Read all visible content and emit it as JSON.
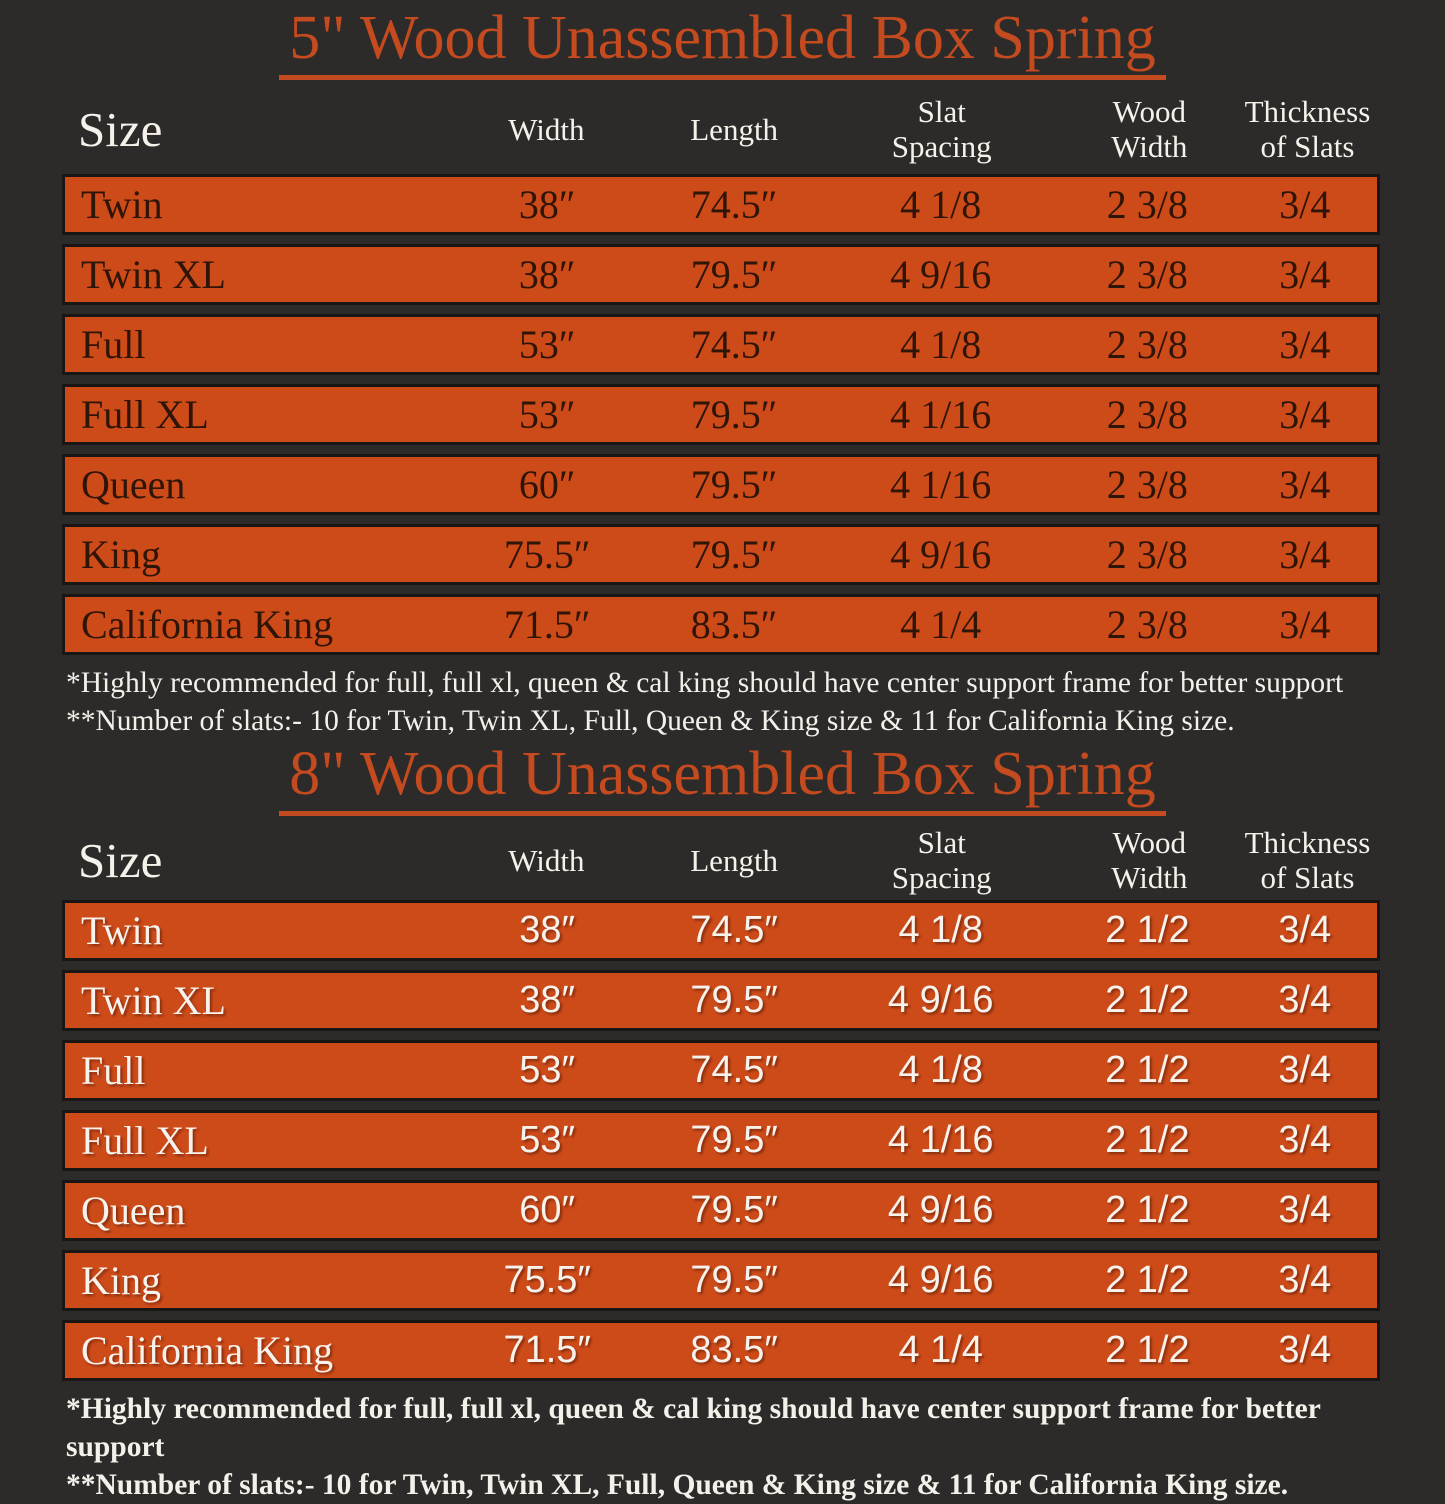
{
  "colors": {
    "background": "#2d2b29",
    "row_fill": "#cd4a19",
    "title_accent": "#c44a20",
    "table1_text_dark": "#2f1408",
    "light_text": "#f6f1ea",
    "row_border": "#181716"
  },
  "tables": [
    {
      "title": "5\" Wood Unassembled Box Spring",
      "headers": [
        [
          "Size",
          ""
        ],
        [
          "Width",
          ""
        ],
        [
          "Length",
          ""
        ],
        [
          "Slat",
          "Spacing"
        ],
        [
          "Wood",
          "Width"
        ],
        [
          "Thickness",
          "of Slats"
        ]
      ],
      "rows": [
        [
          "Twin",
          "38″",
          "74.5″",
          "4 1/8",
          "2 3/8",
          "3/4"
        ],
        [
          "Twin XL",
          "38″",
          "79.5″",
          "4 9/16",
          "2 3/8",
          "3/4"
        ],
        [
          "Full",
          "53″",
          "74.5″",
          "4 1/8",
          "2 3/8",
          "3/4"
        ],
        [
          "Full XL",
          "53″",
          "79.5″",
          "4 1/16",
          "2 3/8",
          "3/4"
        ],
        [
          "Queen",
          "60″",
          "79.5″",
          "4 1/16",
          "2 3/8",
          "3/4"
        ],
        [
          "King",
          "75.5″",
          "79.5″",
          "4 9/16",
          "2 3/8",
          "3/4"
        ],
        [
          "California King",
          "71.5″",
          "83.5″",
          "4 1/4",
          "2 3/8",
          "3/4"
        ]
      ],
      "footnotes": [
        "*Highly recommended for full, full xl, queen & cal king should have center support frame  for better support",
        "**Number of slats:- 10 for Twin, Twin XL, Full, Queen & King size & 11 for California King size."
      ]
    },
    {
      "title": "8\" Wood Unassembled Box Spring",
      "headers": [
        [
          "Size",
          ""
        ],
        [
          "Width",
          ""
        ],
        [
          "Length",
          ""
        ],
        [
          "Slat",
          "Spacing"
        ],
        [
          "Wood",
          "Width"
        ],
        [
          "Thickness",
          "of Slats"
        ]
      ],
      "rows": [
        [
          "Twin",
          "38″",
          "74.5″",
          "4 1/8",
          "2 1/2",
          "3/4"
        ],
        [
          "Twin XL",
          "38″",
          "79.5″",
          "4 9/16",
          "2 1/2",
          "3/4"
        ],
        [
          "Full",
          "53″",
          "74.5″",
          "4 1/8",
          "2 1/2",
          "3/4"
        ],
        [
          "Full XL",
          "53″",
          "79.5″",
          "4 1/16",
          "2 1/2",
          "3/4"
        ],
        [
          "Queen",
          "60″",
          "79.5″",
          "4 9/16",
          "2 1/2",
          "3/4"
        ],
        [
          "King",
          "75.5″",
          "79.5″",
          "4 9/16",
          "2 1/2",
          "3/4"
        ],
        [
          "California King",
          "71.5″",
          "83.5″",
          "4 1/4",
          "2 1/2",
          "3/4"
        ]
      ],
      "footnotes": [
        "*Highly recommended for full, full xl, queen & cal king should have center support frame  for better support",
        "**Number of slats:- 10 for Twin, Twin XL, Full, Queen & King size & 11 for California King size."
      ]
    }
  ]
}
